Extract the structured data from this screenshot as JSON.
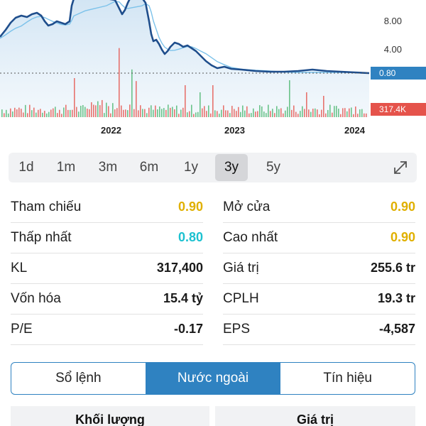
{
  "chart_data": {
    "type": "line",
    "y_ticks": [
      "8.00",
      "4.00"
    ],
    "x_ticks": [
      "2022",
      "2023",
      "2024"
    ],
    "last_price": "0.80",
    "last_volume": "317.4K",
    "price_color": "#1f4e8c",
    "ma_color": "#7cc2ea",
    "volume_up_color": "#49b56d",
    "volume_down_color": "#e5534b",
    "price_tag_color": "#2f82c1",
    "volume_tag_color": "#e5534b"
  },
  "ranges": {
    "items": [
      "1d",
      "1m",
      "3m",
      "6m",
      "1y",
      "3y",
      "5y"
    ],
    "active": "3y"
  },
  "stats": {
    "rows": [
      {
        "l_label": "Tham chiếu",
        "l_value": "0.90",
        "r_label": "Mở cửa",
        "r_value": "0.90"
      },
      {
        "l_label": "Thấp nhất",
        "l_value": "0.80",
        "r_label": "Cao nhất",
        "r_value": "0.90"
      },
      {
        "l_label": "KL",
        "l_value": "317,400",
        "r_label": "Giá trị",
        "r_value": "255.6 tr"
      },
      {
        "l_label": "Vốn hóa",
        "l_value": "15.4 tỷ",
        "r_label": "CPLH",
        "r_value": "19.3 tr"
      },
      {
        "l_label": "P/E",
        "l_value": "-0.17",
        "r_label": "EPS",
        "r_value": "-4,587"
      }
    ]
  },
  "tabs": {
    "order_book": "Sổ lệnh",
    "foreign": "Nước ngoài",
    "signals": "Tín hiệu"
  },
  "table_headers": {
    "volume": "Khối lượng",
    "value": "Giá trị"
  }
}
